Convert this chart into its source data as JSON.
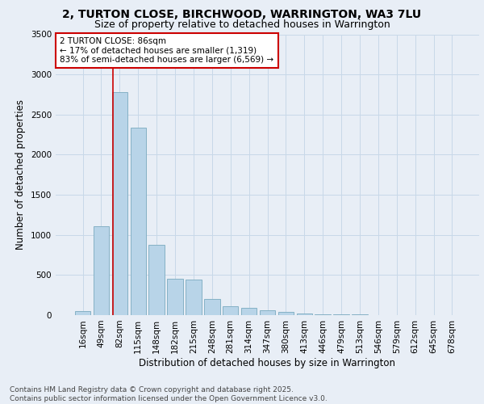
{
  "title1": "2, TURTON CLOSE, BIRCHWOOD, WARRINGTON, WA3 7LU",
  "title2": "Size of property relative to detached houses in Warrington",
  "xlabel": "Distribution of detached houses by size in Warrington",
  "ylabel": "Number of detached properties",
  "categories": [
    "16sqm",
    "49sqm",
    "82sqm",
    "115sqm",
    "148sqm",
    "182sqm",
    "215sqm",
    "248sqm",
    "281sqm",
    "314sqm",
    "347sqm",
    "380sqm",
    "413sqm",
    "446sqm",
    "479sqm",
    "513sqm",
    "546sqm",
    "579sqm",
    "612sqm",
    "645sqm",
    "678sqm"
  ],
  "values": [
    50,
    1110,
    2780,
    2340,
    880,
    450,
    440,
    200,
    110,
    90,
    58,
    38,
    22,
    15,
    10,
    6,
    5,
    3,
    2,
    2,
    2
  ],
  "bar_color": "#b8d4e8",
  "bar_edge_color": "#7aaabf",
  "annotation_text": "2 TURTON CLOSE: 86sqm\n← 17% of detached houses are smaller (1,319)\n83% of semi-detached houses are larger (6,569) →",
  "annotation_box_color": "#ffffff",
  "annotation_box_edge": "#cc0000",
  "vline_color": "#cc0000",
  "vline_x_index": 1.62,
  "ylim": [
    0,
    3500
  ],
  "yticks": [
    0,
    500,
    1000,
    1500,
    2000,
    2500,
    3000,
    3500
  ],
  "grid_color": "#c8d8e8",
  "background_color": "#e8eef6",
  "footer": "Contains HM Land Registry data © Crown copyright and database right 2025.\nContains public sector information licensed under the Open Government Licence v3.0.",
  "title1_fontsize": 10,
  "title2_fontsize": 9,
  "xlabel_fontsize": 8.5,
  "ylabel_fontsize": 8.5,
  "tick_fontsize": 7.5,
  "annotation_fontsize": 7.5,
  "footer_fontsize": 6.5
}
